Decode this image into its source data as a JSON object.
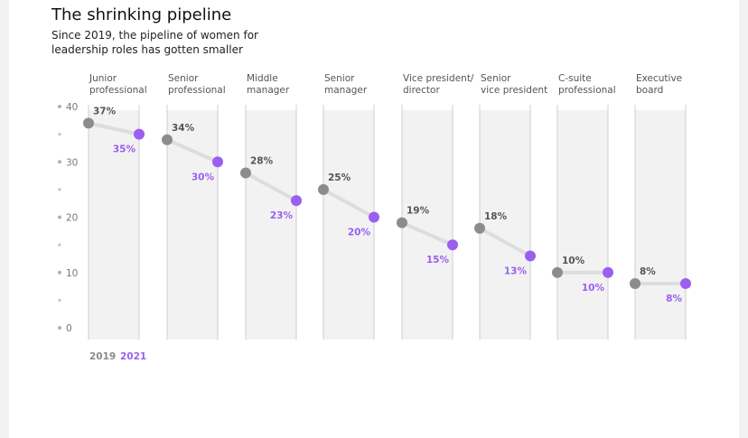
{
  "header": {
    "title": "The shrinking pipeline",
    "subtitle": "Since 2019, the pipeline of women for leadership roles has gotten smaller"
  },
  "colors": {
    "y2019": "#8c8c8c",
    "y2021": "#9a5ff0",
    "panel": "#f2f2f2",
    "connector": "#dddddd"
  },
  "chart_data": {
    "type": "line",
    "title": "The shrinking pipeline",
    "subtitle": "Since 2019, the pipeline of women for leadership roles has gotten smaller",
    "categories": [
      [
        "Junior",
        "professional"
      ],
      [
        "Senior",
        "professional"
      ],
      [
        "Middle",
        "manager"
      ],
      [
        "Senior",
        "manager"
      ],
      [
        "Vice president/",
        "director"
      ],
      [
        "Senior",
        "vice president"
      ],
      [
        "C-suite",
        "professional"
      ],
      [
        "Executive",
        "board"
      ]
    ],
    "series": [
      {
        "name": "2019",
        "values": [
          37,
          34,
          28,
          25,
          19,
          18,
          10,
          8
        ],
        "labels": [
          "37%",
          "34%",
          "28%",
          "25%",
          "19%",
          "18%",
          "10%",
          "8%"
        ]
      },
      {
        "name": "2021",
        "values": [
          35,
          30,
          23,
          20,
          15,
          13,
          10,
          8
        ],
        "labels": [
          "35%",
          "30%",
          "23%",
          "20%",
          "15%",
          "13%",
          "10%",
          "8%"
        ]
      }
    ],
    "ylim": [
      0,
      40
    ],
    "yticks": [
      0,
      10,
      20,
      30,
      40
    ],
    "legend_placement": "bottom-left",
    "grid": false
  }
}
